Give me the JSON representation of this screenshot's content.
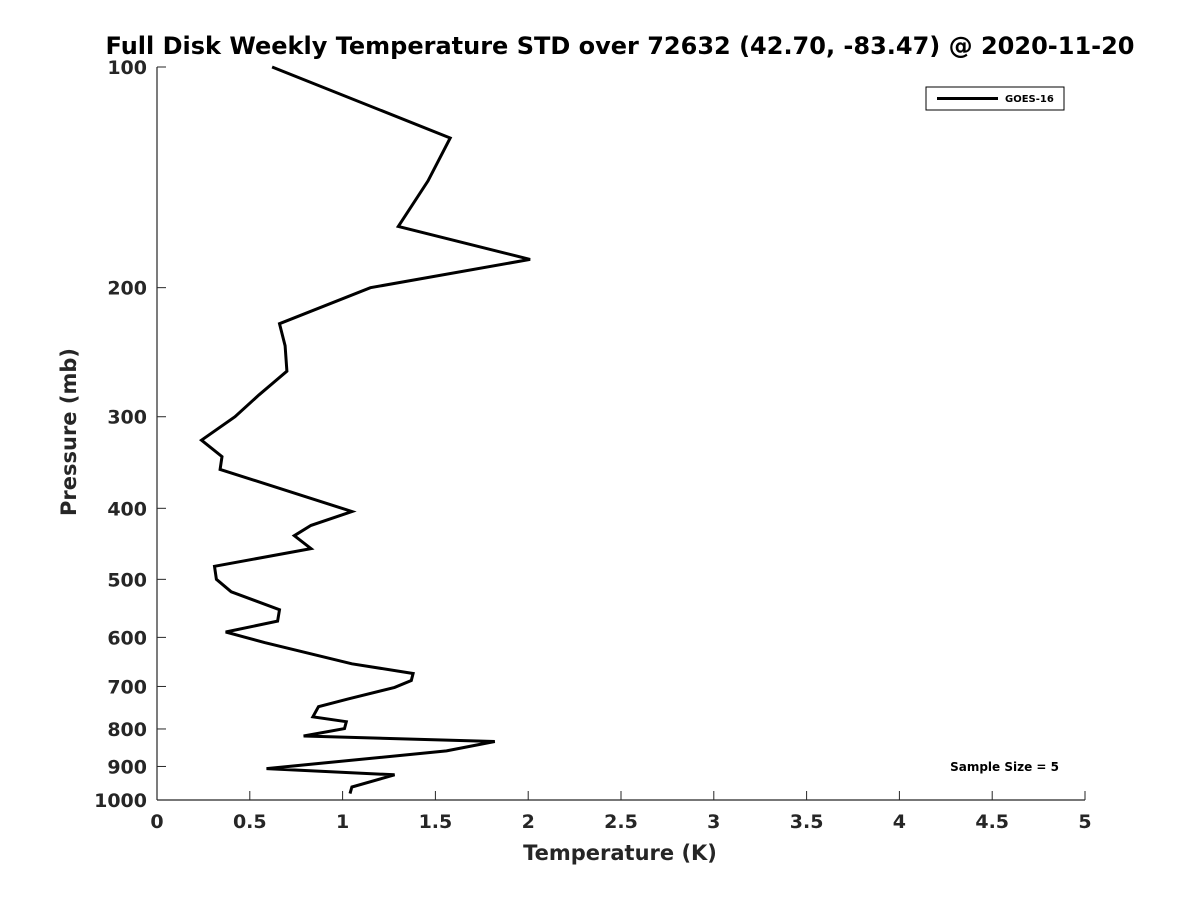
{
  "chart_data": {
    "type": "line",
    "title": "Full Disk Weekly Temperature STD over 72632 (42.70, -83.47) @ 2020-11-20",
    "xlabel": "Temperature (K)",
    "ylabel": "Pressure (mb)",
    "xlim": [
      0,
      5
    ],
    "ylim": [
      100,
      1000
    ],
    "y_scale": "log",
    "y_reversed": true,
    "xticks": [
      0,
      0.5,
      1,
      1.5,
      2,
      2.5,
      3,
      3.5,
      4,
      4.5,
      5
    ],
    "xtick_labels": [
      "0",
      "0.5",
      "1",
      "1.5",
      "2",
      "2.5",
      "3",
      "3.5",
      "4",
      "4.5",
      "5"
    ],
    "yticks": [
      100,
      200,
      300,
      400,
      500,
      600,
      700,
      800,
      900,
      1000
    ],
    "ytick_labels": [
      "100",
      "200",
      "300",
      "400",
      "500",
      "600",
      "700",
      "800",
      "900",
      "1000"
    ],
    "grid": false,
    "legend_position": "top-right",
    "annotation": "Sample Size = 5",
    "series": [
      {
        "name": "GOES-16",
        "color": "#000000",
        "points": [
          [
            0.62,
            100
          ],
          [
            1.58,
            125
          ],
          [
            1.46,
            143
          ],
          [
            1.3,
            165
          ],
          [
            2.01,
            183
          ],
          [
            1.15,
            200
          ],
          [
            0.66,
            224
          ],
          [
            0.69,
            240
          ],
          [
            0.7,
            260
          ],
          [
            0.55,
            280
          ],
          [
            0.42,
            300
          ],
          [
            0.24,
            323
          ],
          [
            0.35,
            340
          ],
          [
            0.34,
            354
          ],
          [
            1.05,
            404
          ],
          [
            0.83,
            422
          ],
          [
            0.74,
            436
          ],
          [
            0.83,
            454
          ],
          [
            0.31,
            480
          ],
          [
            0.32,
            500
          ],
          [
            0.4,
            520
          ],
          [
            0.66,
            550
          ],
          [
            0.65,
            570
          ],
          [
            0.37,
            590
          ],
          [
            0.58,
            610
          ],
          [
            1.05,
            652
          ],
          [
            1.38,
            672
          ],
          [
            1.37,
            687
          ],
          [
            1.28,
            702
          ],
          [
            1.03,
            728
          ],
          [
            0.87,
            746
          ],
          [
            0.84,
            770
          ],
          [
            1.02,
            782
          ],
          [
            1.01,
            799
          ],
          [
            0.79,
            818
          ],
          [
            1.82,
            832
          ],
          [
            1.56,
            857
          ],
          [
            0.59,
            906
          ],
          [
            1.28,
            924
          ],
          [
            1.05,
            960
          ],
          [
            1.04,
            980
          ]
        ]
      }
    ]
  }
}
